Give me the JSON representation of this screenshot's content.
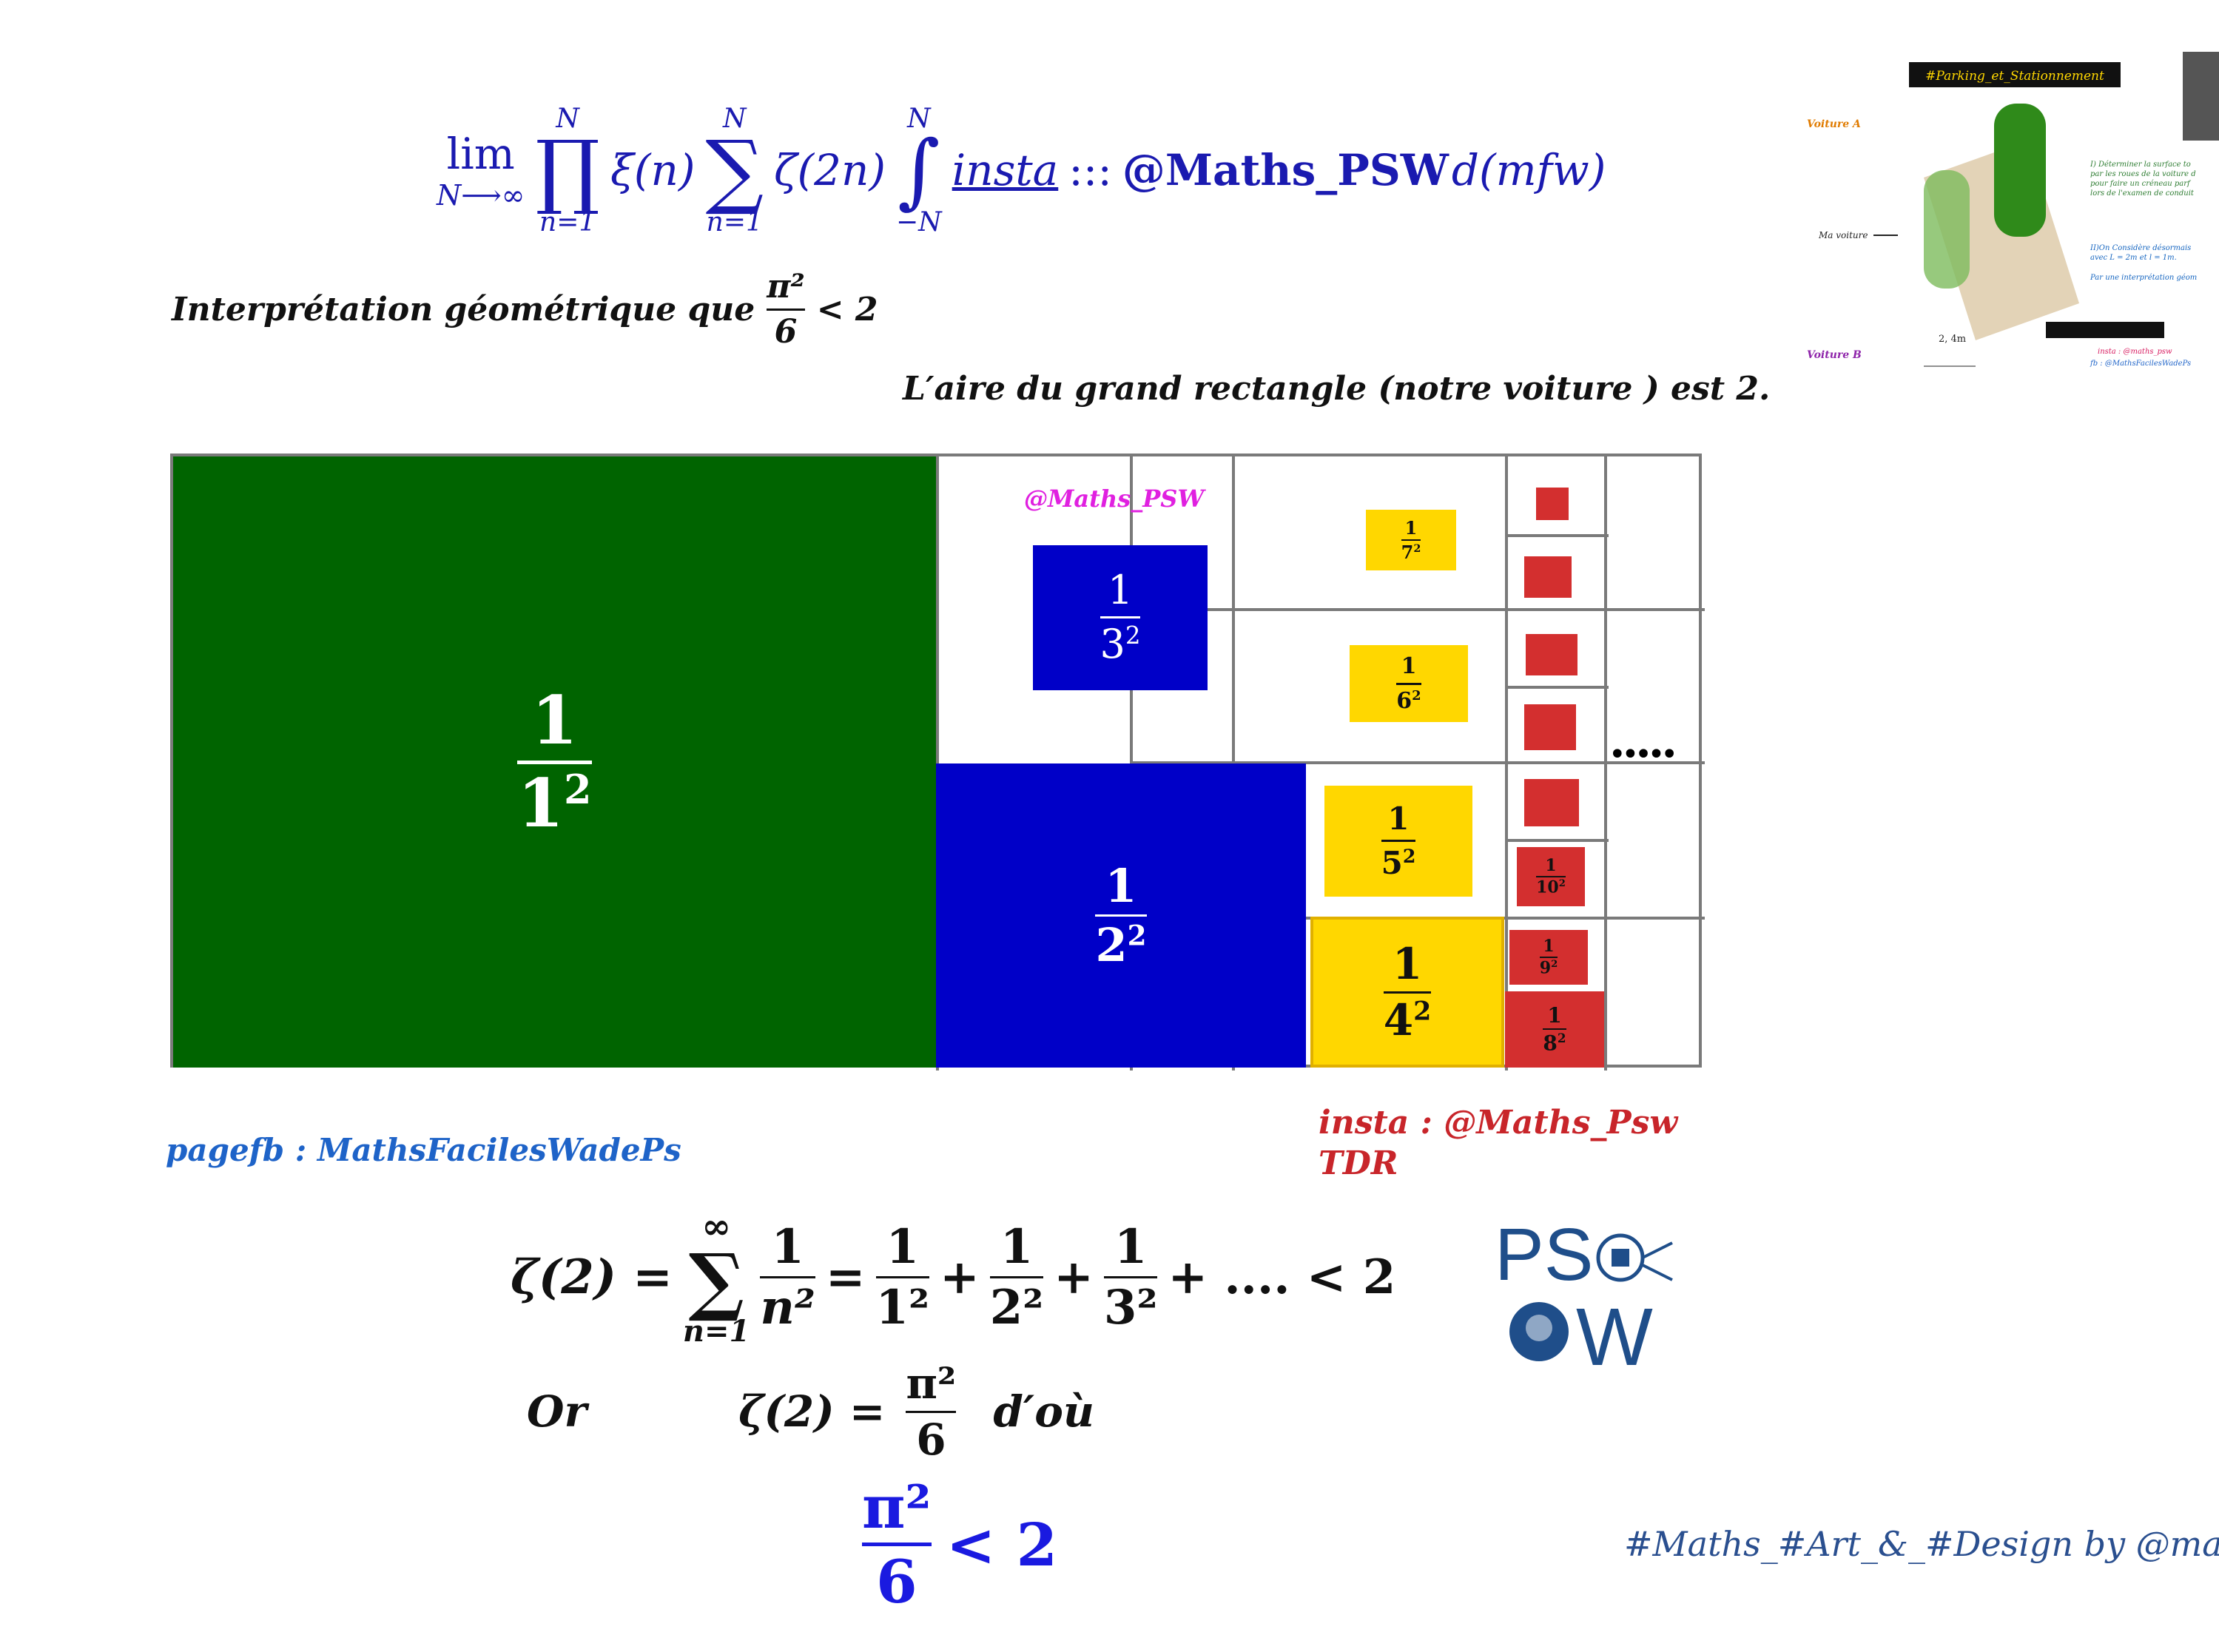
{
  "header_formula": {
    "lim": "lim",
    "lim_sub": "N⟶∞",
    "prod_top": "N",
    "prod_bot": "n=1",
    "xi": "ξ(n)",
    "sum_top": "N",
    "sum_bot": "n=1",
    "zeta2n": "ζ(2n)",
    "int_top": "N",
    "int_bot": "−N",
    "insta": "insta",
    "sep": ":::",
    "handle": "@Maths_PSW",
    "dmfw": "d(mfw)"
  },
  "interpretation": {
    "text": "Interprétation géométrique que",
    "num": "π²",
    "den": "6",
    "rel": "< 2"
  },
  "area_note": "L′aire du grand rectangle (notre voiture ) est 2.",
  "rectangle": {
    "handle_label": "@Maths_PSW",
    "cells": [
      {
        "key": "1_1",
        "num": "1",
        "den": "1",
        "exp": "2",
        "color": "#006400"
      },
      {
        "key": "1_2",
        "num": "1",
        "den": "2",
        "exp": "2",
        "color": "#0000c8"
      },
      {
        "key": "1_3",
        "num": "1",
        "den": "3",
        "exp": "2",
        "color": "#0000c8"
      },
      {
        "key": "1_4",
        "num": "1",
        "den": "4",
        "exp": "2",
        "color": "#ffd700"
      },
      {
        "key": "1_5",
        "num": "1",
        "den": "5",
        "exp": "2",
        "color": "#ffd700"
      },
      {
        "key": "1_6",
        "num": "1",
        "den": "6",
        "exp": "2",
        "color": "#ffd700"
      },
      {
        "key": "1_7",
        "num": "1",
        "den": "7",
        "exp": "2",
        "color": "#ffd700"
      },
      {
        "key": "1_8",
        "num": "1",
        "den": "8",
        "exp": "2",
        "color": "#d32f2f"
      },
      {
        "key": "1_9",
        "num": "1",
        "den": "9",
        "exp": "2",
        "color": "#d32f2f"
      },
      {
        "key": "1_10",
        "num": "1",
        "den": "10",
        "exp": "2",
        "color": "#d32f2f"
      }
    ],
    "dots": "•••••"
  },
  "fb_page": "pagefb : MathsFacilesWadePs",
  "insta_tdr": {
    "line1": "insta :  @Maths_Psw",
    "line2": "TDR"
  },
  "zeta_line": {
    "lhs": "ζ(2) =",
    "sum_top": "∞",
    "sum_bot": "n=1",
    "f_num": "1",
    "f_den": "n²",
    "eq": "=",
    "t1_num": "1",
    "t1_den": "1²",
    "t2_num": "1",
    "t2_den": "2²",
    "t3_num": "1",
    "t3_den": "3²",
    "plus": "+",
    "tail": "+ .... < 2"
  },
  "or_line": {
    "or": "Or",
    "lhs": "ζ(2) =",
    "num": "π²",
    "den": "6",
    "dou": "d′où"
  },
  "conclusion": {
    "num": "π²",
    "den": "6",
    "rel": "< 2"
  },
  "hashtag_signature": "#Maths_#Art_&_#Design by @mat",
  "thumbnail": {
    "title": "#Parking_et_Stationnement",
    "voiture_a": "Voiture A",
    "voiture_b": "Voiture B",
    "ma_voiture": "Ma voiture",
    "dim": "2, 4m",
    "text1": "I) Déterminer la surface to",
    "text2": "par les roues de la voiture d",
    "text3": "pour faire un créneau parf",
    "text4": "lors de l'examen de conduit",
    "text5": "II)On Considère désormais",
    "text6": "avec L = 2m et l = 1m.",
    "text7": "Par une interprétation géom",
    "insta": "insta : @maths_psw",
    "fb": "fb : @MathsFacilesWadePs"
  },
  "logo": {
    "ps": "PS",
    "w": "W"
  }
}
